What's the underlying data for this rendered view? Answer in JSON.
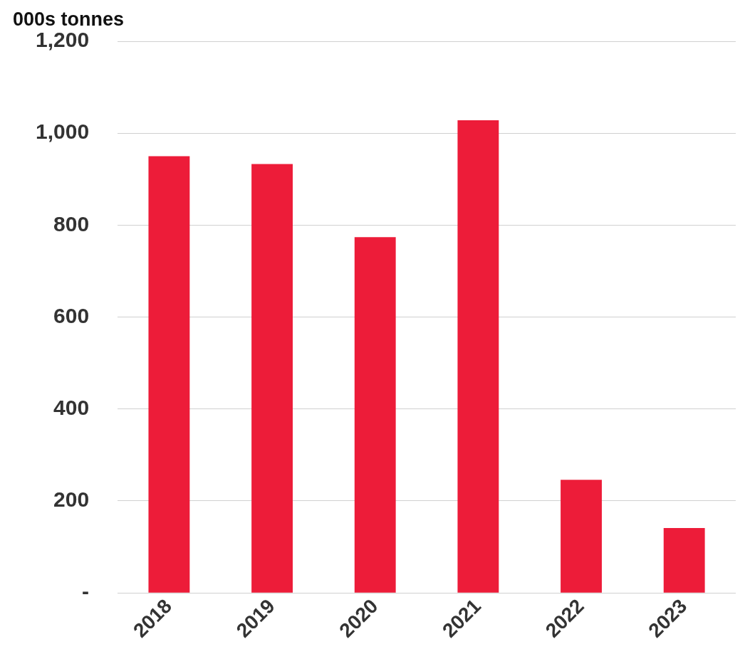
{
  "chart_data": {
    "type": "bar",
    "ylabel": "000s tonnes",
    "categories": [
      "2018",
      "2019",
      "2020",
      "2021",
      "2022",
      "2023"
    ],
    "values": [
      950,
      933,
      774,
      1028,
      246,
      141
    ],
    "color": "#ed1c39",
    "ylim": [
      0,
      1200
    ],
    "yticks": [
      {
        "value": 0,
        "label": "-"
      },
      {
        "value": 200,
        "label": "200"
      },
      {
        "value": 400,
        "label": "400"
      },
      {
        "value": 600,
        "label": "600"
      },
      {
        "value": 800,
        "label": "800"
      },
      {
        "value": 1000,
        "label": "1,000"
      },
      {
        "value": 1200,
        "label": "1,200"
      }
    ],
    "grid": "y",
    "legend": false
  }
}
